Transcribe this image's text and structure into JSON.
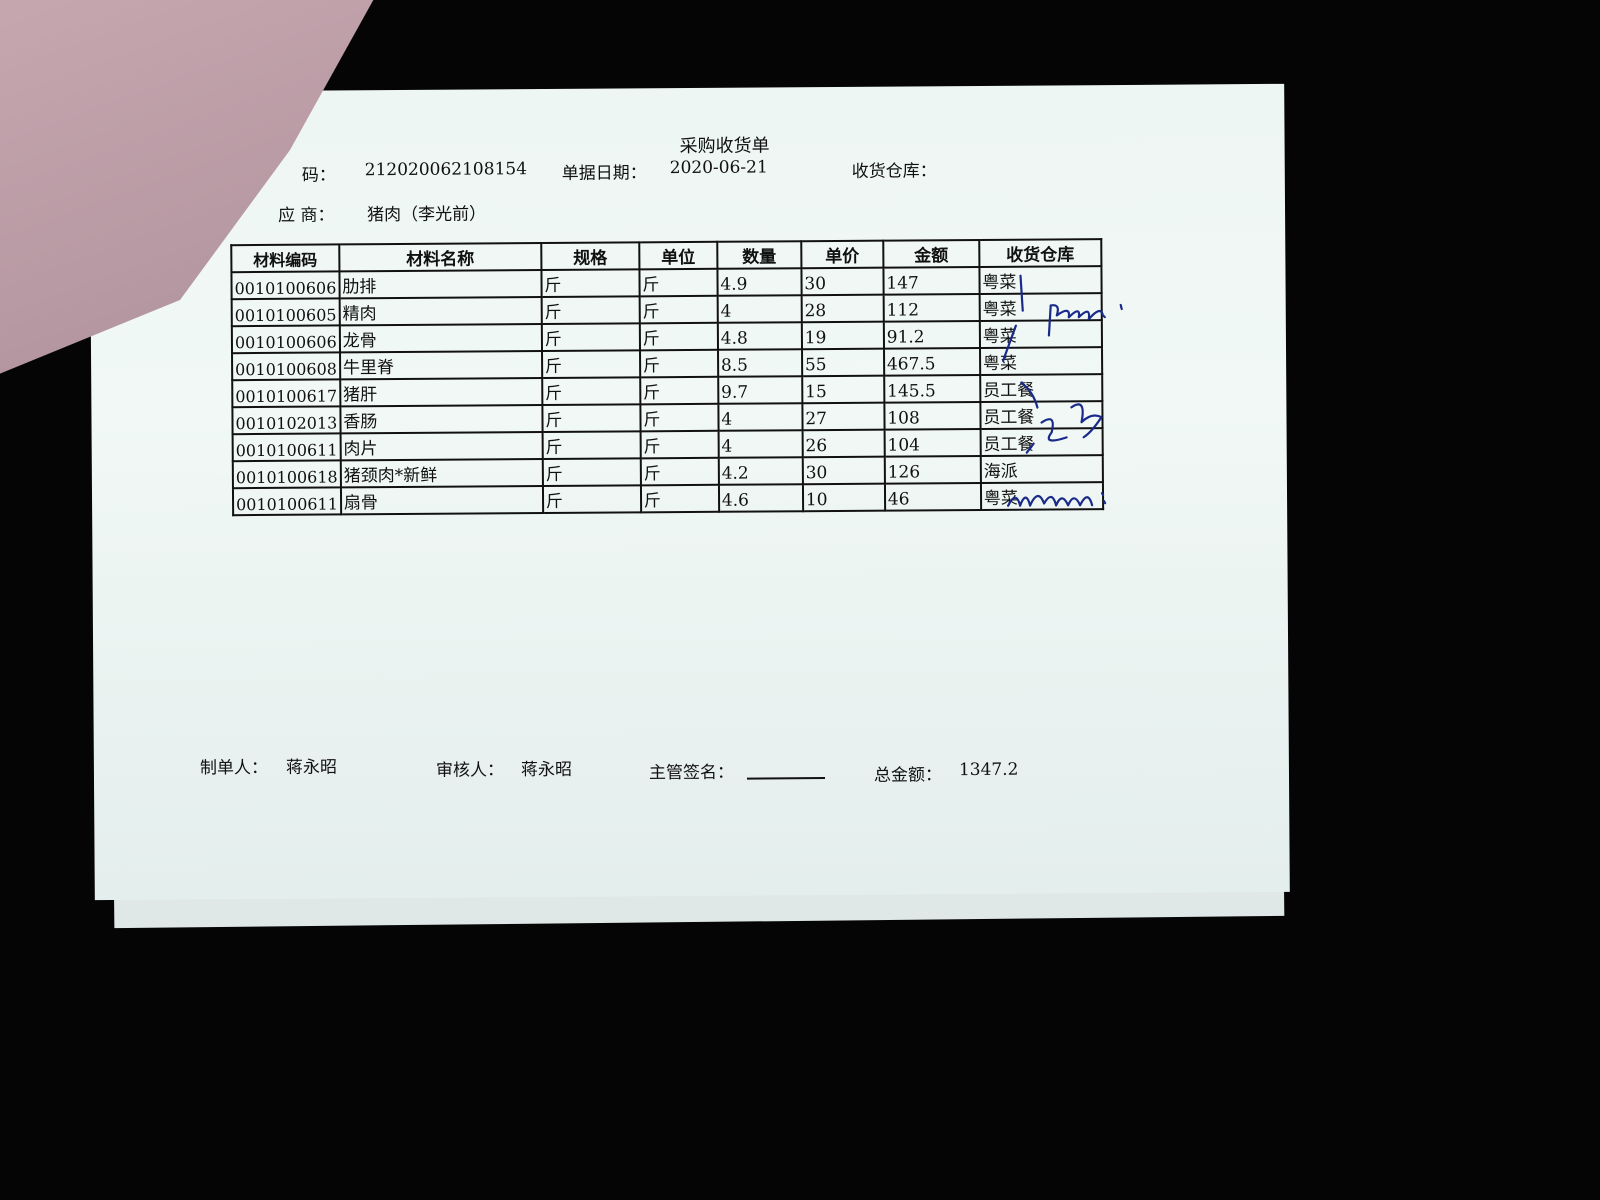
{
  "document": {
    "title": "采购收货单",
    "doc_no_label": "码：",
    "doc_no": "212020062108154",
    "date_label": "单据日期：",
    "date": "2020-06-21",
    "warehouse_label": "收货仓库：",
    "supplier_label": "应 商：",
    "supplier": "猪肉（李光前）"
  },
  "table": {
    "headers": [
      "材料编码",
      "材料名称",
      "规格",
      "单位",
      "数量",
      "单价",
      "金额",
      "收货仓库"
    ],
    "rows": [
      [
        "0010100606",
        "肋排",
        "斤",
        "斤",
        "4.9",
        "30",
        "147",
        "粤菜"
      ],
      [
        "0010100605",
        "精肉",
        "斤",
        "斤",
        "4",
        "28",
        "112",
        "粤菜"
      ],
      [
        "0010100606",
        "龙骨",
        "斤",
        "斤",
        "4.8",
        "19",
        "91.2",
        "粤菜"
      ],
      [
        "0010100608",
        "牛里脊",
        "斤",
        "斤",
        "8.5",
        "55",
        "467.5",
        "粤菜"
      ],
      [
        "0010100617",
        "猪肝",
        "斤",
        "斤",
        "9.7",
        "15",
        "145.5",
        "员工餐"
      ],
      [
        "0010102013",
        "香肠",
        "斤",
        "斤",
        "4",
        "27",
        "108",
        "员工餐"
      ],
      [
        "0010100611",
        "肉片",
        "斤",
        "斤",
        "4",
        "26",
        "104",
        "员工餐"
      ],
      [
        "0010100618",
        "猪颈肉*新鲜",
        "斤",
        "斤",
        "4.2",
        "30",
        "126",
        "海派"
      ],
      [
        "0010100611",
        "扇骨",
        "斤",
        "斤",
        "4.6",
        "10",
        "46",
        "粤菜"
      ]
    ]
  },
  "footer": {
    "maker_label": "制单人：",
    "maker": "蒋永昭",
    "reviewer_label": "审核人：",
    "reviewer": "蒋永昭",
    "supervisor_label": "主管签名：",
    "total_label": "总金额：",
    "total": "1347.2"
  },
  "colors": {
    "paper": "#eef6f4",
    "ink": "#111111",
    "handwriting": "#1a2a8a",
    "background": "#050505"
  }
}
